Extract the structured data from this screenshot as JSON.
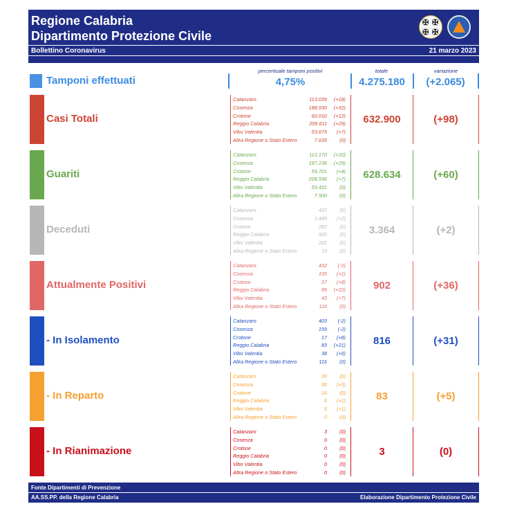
{
  "header": {
    "title1": "Regione Calabria",
    "title2": "Dipartimento Protezione Civile",
    "subtitle": "Bollettino Coronavirus",
    "date": "21 marzo 2023",
    "logo1_icon": "regione-calabria-crest",
    "logo2_icon": "protezione-civile-logo"
  },
  "tamponi": {
    "title": "Tamponi effettuati",
    "lbl_perc": "percentuale tamponi positivi",
    "lbl_tot": "totale",
    "lbl_var": "variazione",
    "perc": "4,75%",
    "total": "4.275.180",
    "variation": "(+2.065)",
    "color": "#3a8be0"
  },
  "rows": [
    {
      "title": "Casi Totali",
      "color": "#cc4434",
      "total": "632.900",
      "variation": "(+98)",
      "provinces": [
        {
          "name": "Catanzaro",
          "value": "113.039",
          "delta": "(+18)"
        },
        {
          "name": "Cosenza",
          "value": "188.930",
          "delta": "(+32)"
        },
        {
          "name": "Crotone",
          "value": "60.010",
          "delta": "(+12)"
        },
        {
          "name": "Reggio Calabria",
          "value": "209.611",
          "delta": "(+29)"
        },
        {
          "name": "Vibo Valentia",
          "value": "53.675",
          "delta": "(+7)"
        },
        {
          "name": "Altra Regione o Stato Estero",
          "value": "7.635",
          "delta": "(0)"
        }
      ]
    },
    {
      "title": "Guariti",
      "color": "#6aa84f",
      "total": "628.634",
      "variation": "(+60)",
      "provinces": [
        {
          "name": "Catanzaro",
          "value": "112.170",
          "delta": "(+20)"
        },
        {
          "name": "Cosenza",
          "value": "187.236",
          "delta": "(+29)"
        },
        {
          "name": "Crotone",
          "value": "59.701",
          "delta": "(+4)"
        },
        {
          "name": "Reggio Calabria",
          "value": "208.596",
          "delta": "(+7)"
        },
        {
          "name": "Vibo Valentia",
          "value": "53.431",
          "delta": "(0)"
        },
        {
          "name": "Altra Regione o Stato Estero",
          "value": "7.500",
          "delta": "(0)"
        }
      ]
    },
    {
      "title": "Deceduti",
      "color": "#b7b7b7",
      "total": "3.364",
      "variation": "(+2)",
      "provinces": [
        {
          "name": "Catanzaro",
          "value": "437",
          "delta": "(0)"
        },
        {
          "name": "Cosenza",
          "value": "1.499",
          "delta": "(+2)"
        },
        {
          "name": "Crotone",
          "value": "282",
          "delta": "(0)"
        },
        {
          "name": "Reggio Calabria",
          "value": "926",
          "delta": "(0)"
        },
        {
          "name": "Vibo Valentia",
          "value": "201",
          "delta": "(0)"
        },
        {
          "name": "Altra Regione o Stato Estero",
          "value": "19",
          "delta": "(0)"
        }
      ]
    },
    {
      "title": "Attualmente Positivi",
      "color": "#e06666",
      "total": "902",
      "variation": "(+36)",
      "provinces": [
        {
          "name": "Catanzaro",
          "value": "432",
          "delta": "(-2)"
        },
        {
          "name": "Cosenza",
          "value": "195",
          "delta": "(+1)"
        },
        {
          "name": "Crotone",
          "value": "27",
          "delta": "(+8)"
        },
        {
          "name": "Reggio Calabria",
          "value": "89",
          "delta": "(+22)"
        },
        {
          "name": "Vibo Valentia",
          "value": "43",
          "delta": "(+7)"
        },
        {
          "name": "Altra Regione o Stato Estero",
          "value": "116",
          "delta": "(0)"
        }
      ]
    },
    {
      "title": "- In Isolamento",
      "color": "#1f4fbf",
      "total": "816",
      "variation": "(+31)",
      "provinces": [
        {
          "name": "Catanzaro",
          "value": "403",
          "delta": "(-2)"
        },
        {
          "name": "Cosenza",
          "value": "159",
          "delta": "(-2)"
        },
        {
          "name": "Crotone",
          "value": "17",
          "delta": "(+8)"
        },
        {
          "name": "Reggio Calabria",
          "value": "83",
          "delta": "(+21)"
        },
        {
          "name": "Vibo Valentia",
          "value": "38",
          "delta": "(+6)"
        },
        {
          "name": "Altra Regione o Stato Estero",
          "value": "116",
          "delta": "(0)"
        }
      ]
    },
    {
      "title": "- In Reparto",
      "color": "#f6a031",
      "total": "83",
      "variation": "(+5)",
      "provinces": [
        {
          "name": "Catanzaro",
          "value": "26",
          "delta": "(0)"
        },
        {
          "name": "Cosenza",
          "value": "36",
          "delta": "(+3)"
        },
        {
          "name": "Crotone",
          "value": "10",
          "delta": "(0)"
        },
        {
          "name": "Reggio Calabria",
          "value": "6",
          "delta": "(+1)"
        },
        {
          "name": "Vibo Valentia",
          "value": "5",
          "delta": "(+1)"
        },
        {
          "name": "Altra Regione o Stato Estero",
          "value": "0",
          "delta": "(0)"
        }
      ]
    },
    {
      "title": "- In Rianimazione",
      "color": "#c8101a",
      "total": "3",
      "variation": "(0)",
      "provinces": [
        {
          "name": "Catanzaro",
          "value": "3",
          "delta": "(0)"
        },
        {
          "name": "Cosenza",
          "value": "0",
          "delta": "(0)"
        },
        {
          "name": "Crotone",
          "value": "0",
          "delta": "(0)"
        },
        {
          "name": "Reggio Calabria",
          "value": "0",
          "delta": "(0)"
        },
        {
          "name": "Vibo Valentia",
          "value": "0",
          "delta": "(0)"
        },
        {
          "name": "Altra Regione o Stato Estero",
          "value": "0",
          "delta": "(0)"
        }
      ]
    }
  ],
  "footer": {
    "line1": "Fonte Dipartimenti di Prevenzione",
    "line2": "AA.SS.PP.  della Regione Calabria",
    "right": "Elaborazione Dipartimento Protezione Civile"
  }
}
